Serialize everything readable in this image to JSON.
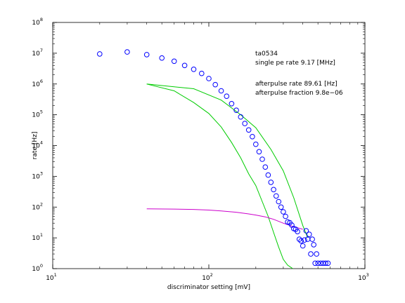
{
  "chart_data": {
    "type": "scatter",
    "xscale": "log",
    "yscale": "log",
    "xlim": [
      10,
      1000
    ],
    "ylim": [
      1,
      100000000
    ],
    "xlabel": "discriminator setting [mV]",
    "ylabel": "rate [Hz]",
    "xticks": [
      {
        "value": 10,
        "base": "10",
        "exp": "1"
      },
      {
        "value": 100,
        "base": "10",
        "exp": "2"
      },
      {
        "value": 1000,
        "base": "10",
        "exp": "3"
      }
    ],
    "yticks": [
      {
        "value": 1,
        "base": "10",
        "exp": "0"
      },
      {
        "value": 10,
        "base": "10",
        "exp": "1"
      },
      {
        "value": 100,
        "base": "10",
        "exp": "2"
      },
      {
        "value": 1000,
        "base": "10",
        "exp": "3"
      },
      {
        "value": 10000,
        "base": "10",
        "exp": "4"
      },
      {
        "value": 100000,
        "base": "10",
        "exp": "5"
      },
      {
        "value": 1000000,
        "base": "10",
        "exp": "6"
      },
      {
        "value": 10000000,
        "base": "10",
        "exp": "7"
      },
      {
        "value": 100000000,
        "base": "10",
        "exp": "8"
      }
    ],
    "annotations": [
      "ta0534",
      "single pe rate 9.17 [MHz]",
      "afterpulse rate 89.61 [Hz]",
      "afterpulse fraction 9.8e−06"
    ],
    "colors": {
      "data": "#0000ff",
      "fit_single_pe": "#00cc00",
      "fit_afterpulse": "#cc00cc"
    },
    "series": [
      {
        "type": "scatter",
        "x": [
          20,
          30,
          40,
          50,
          60,
          70,
          80,
          90,
          100,
          110,
          120,
          130,
          140,
          150,
          160,
          170,
          180,
          190,
          200,
          210,
          220,
          230,
          240,
          250,
          260,
          270,
          280,
          290,
          300,
          310,
          320,
          330,
          340,
          350,
          360,
          370,
          380,
          390,
          400,
          410,
          420,
          430,
          440,
          450,
          460,
          470,
          480,
          490,
          500,
          520,
          540,
          560,
          580
        ],
        "y": [
          9500000,
          11000000,
          9000000,
          7000000,
          5500000,
          4000000,
          3000000,
          2200000,
          1500000,
          950000,
          600000,
          400000,
          230000,
          140000,
          85000,
          52000,
          32000,
          19500,
          11000,
          6300,
          3600,
          2000,
          1100,
          640,
          370,
          230,
          150,
          100,
          70,
          50,
          33,
          31,
          26,
          20,
          19,
          16,
          9,
          8,
          5.5,
          8.5,
          17,
          9,
          13,
          3,
          9,
          6,
          1.5,
          3,
          1.5,
          1.5,
          1.5,
          1.5,
          1.5
        ]
      },
      {
        "type": "line",
        "x": [
          40,
          60,
          80,
          100,
          120,
          140,
          160,
          180,
          200,
          220,
          240,
          260,
          280,
          300,
          320,
          345
        ],
        "y": [
          1000000,
          600000,
          250000,
          110000,
          40000,
          12500,
          4000,
          1200,
          500,
          150,
          50,
          15,
          5,
          2,
          1.3,
          0.8
        ]
      },
      {
        "type": "line",
        "x": [
          40,
          80,
          120,
          160,
          200,
          250,
          300,
          350,
          400,
          430
        ],
        "y": [
          1000000,
          700000,
          300000,
          100000,
          38000,
          7500,
          1500,
          200,
          25,
          10
        ]
      },
      {
        "type": "line",
        "x": [
          40,
          60,
          80,
          100,
          120,
          150,
          180,
          200,
          230,
          260,
          300,
          350,
          400
        ],
        "y": [
          88,
          86,
          84,
          80,
          75,
          68,
          60,
          55,
          48,
          40,
          30,
          23,
          19
        ]
      }
    ]
  }
}
